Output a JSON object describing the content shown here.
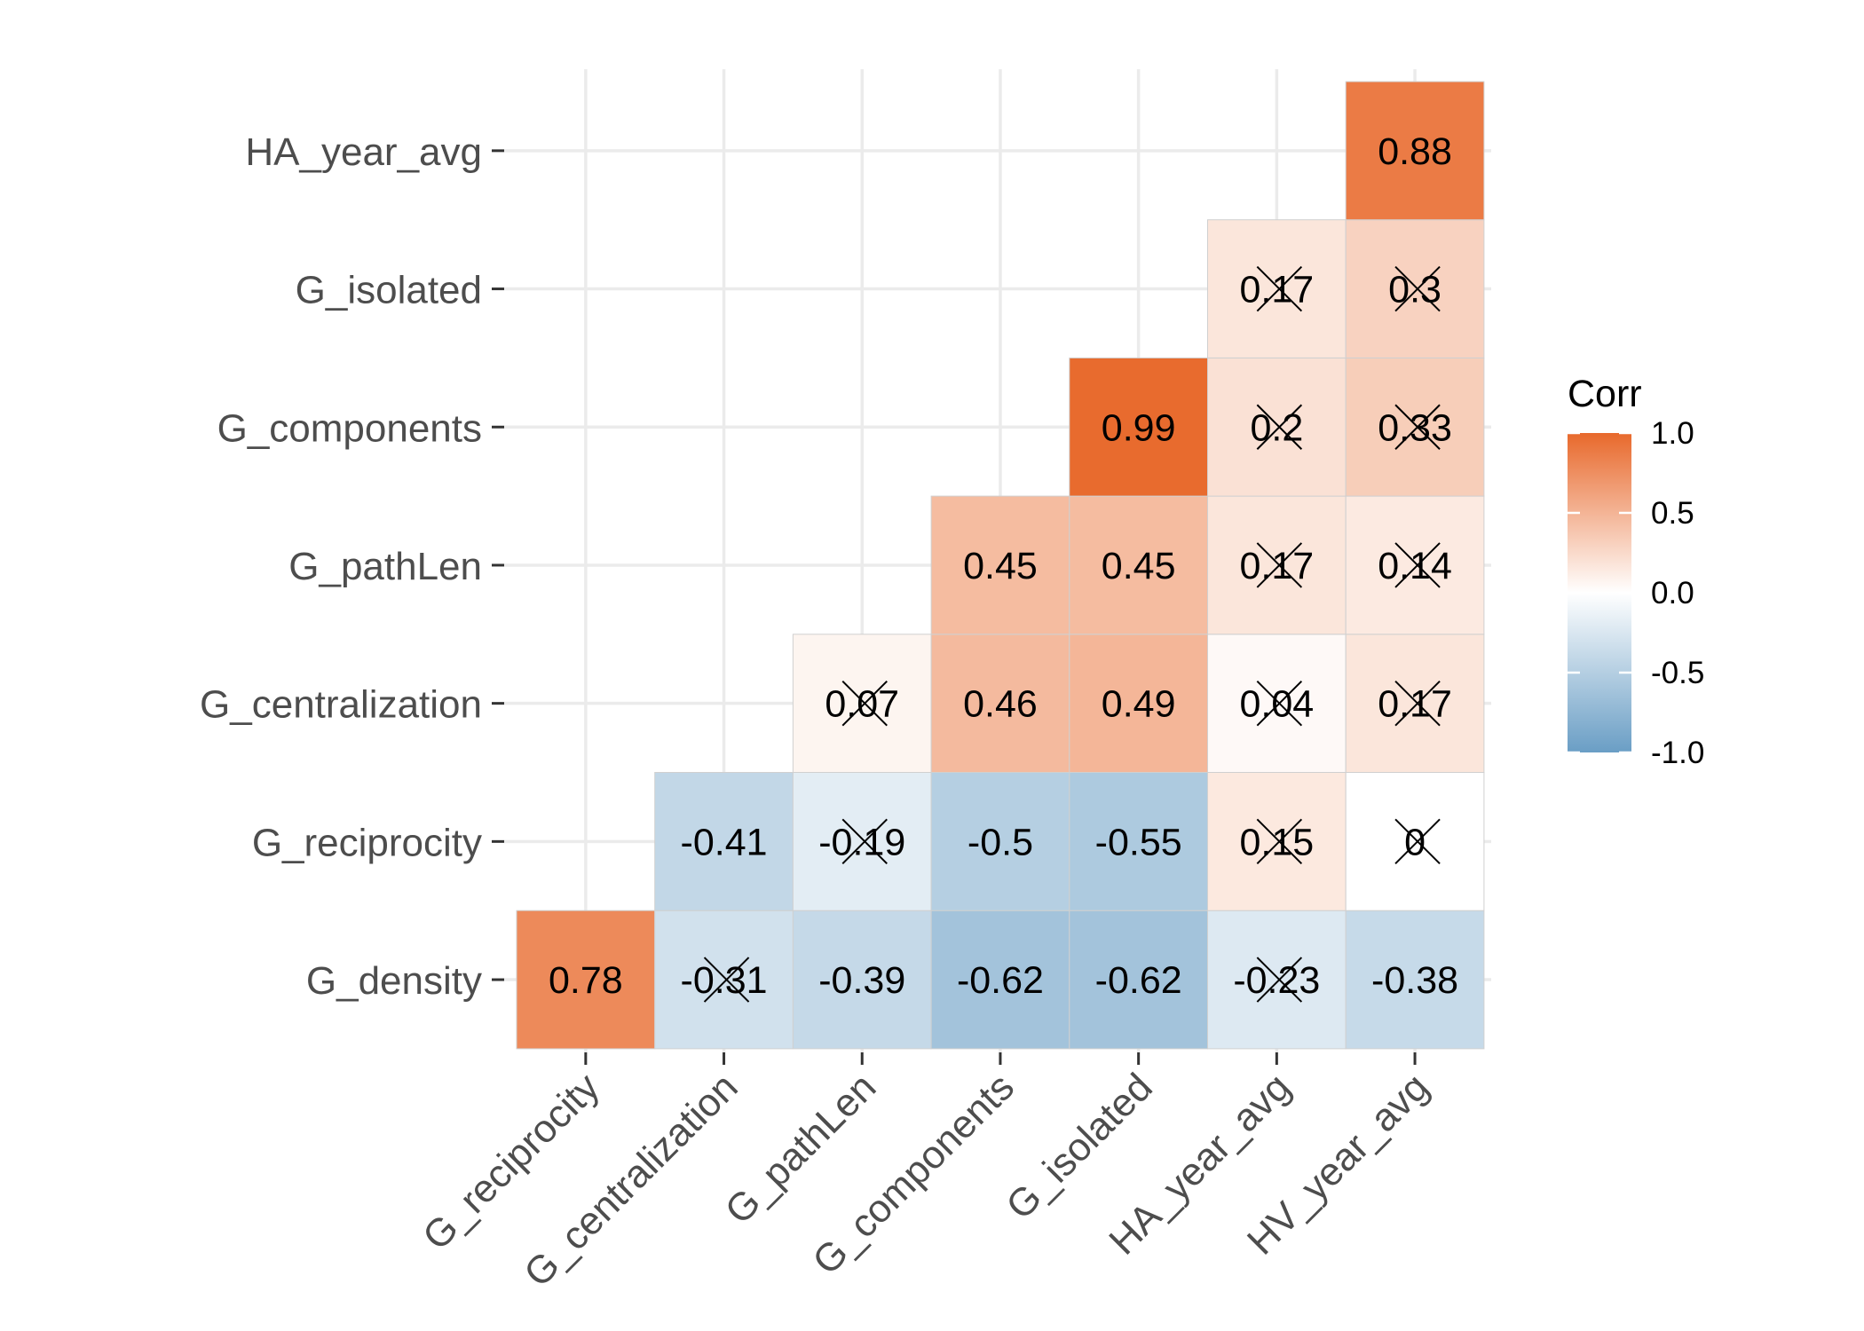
{
  "chart_data": {
    "type": "heatmap",
    "subtype": "lower-triangle correlation matrix",
    "x_categories": [
      "G_reciprocity",
      "G_centralization",
      "G_pathLen",
      "G_components",
      "G_isolated",
      "HA_year_avg",
      "HV_year_avg"
    ],
    "y_categories": [
      "G_density",
      "G_reciprocity",
      "G_centralization",
      "G_pathLen",
      "G_components",
      "G_isolated",
      "HA_year_avg"
    ],
    "cells": [
      {
        "x": "G_reciprocity",
        "y": "G_density",
        "value": 0.78,
        "label": "0.78",
        "insignificant": false
      },
      {
        "x": "G_centralization",
        "y": "G_density",
        "value": -0.31,
        "label": "-0.31",
        "insignificant": true
      },
      {
        "x": "G_pathLen",
        "y": "G_density",
        "value": -0.39,
        "label": "-0.39",
        "insignificant": false
      },
      {
        "x": "G_components",
        "y": "G_density",
        "value": -0.62,
        "label": "-0.62",
        "insignificant": false
      },
      {
        "x": "G_isolated",
        "y": "G_density",
        "value": -0.62,
        "label": "-0.62",
        "insignificant": false
      },
      {
        "x": "HA_year_avg",
        "y": "G_density",
        "value": -0.23,
        "label": "-0.23",
        "insignificant": true
      },
      {
        "x": "HV_year_avg",
        "y": "G_density",
        "value": -0.38,
        "label": "-0.38",
        "insignificant": false
      },
      {
        "x": "G_centralization",
        "y": "G_reciprocity",
        "value": -0.41,
        "label": "-0.41",
        "insignificant": false
      },
      {
        "x": "G_pathLen",
        "y": "G_reciprocity",
        "value": -0.19,
        "label": "-0.19",
        "insignificant": true
      },
      {
        "x": "G_components",
        "y": "G_reciprocity",
        "value": -0.5,
        "label": "-0.5",
        "insignificant": false
      },
      {
        "x": "G_isolated",
        "y": "G_reciprocity",
        "value": -0.55,
        "label": "-0.55",
        "insignificant": false
      },
      {
        "x": "HA_year_avg",
        "y": "G_reciprocity",
        "value": 0.15,
        "label": "0.15",
        "insignificant": true
      },
      {
        "x": "HV_year_avg",
        "y": "G_reciprocity",
        "value": 0,
        "label": "0",
        "insignificant": true
      },
      {
        "x": "G_pathLen",
        "y": "G_centralization",
        "value": 0.07,
        "label": "0.07",
        "insignificant": true
      },
      {
        "x": "G_components",
        "y": "G_centralization",
        "value": 0.46,
        "label": "0.46",
        "insignificant": false
      },
      {
        "x": "G_isolated",
        "y": "G_centralization",
        "value": 0.49,
        "label": "0.49",
        "insignificant": false
      },
      {
        "x": "HA_year_avg",
        "y": "G_centralization",
        "value": 0.04,
        "label": "0.04",
        "insignificant": true
      },
      {
        "x": "HV_year_avg",
        "y": "G_centralization",
        "value": 0.17,
        "label": "0.17",
        "insignificant": true
      },
      {
        "x": "G_components",
        "y": "G_pathLen",
        "value": 0.45,
        "label": "0.45",
        "insignificant": false
      },
      {
        "x": "G_isolated",
        "y": "G_pathLen",
        "value": 0.45,
        "label": "0.45",
        "insignificant": false
      },
      {
        "x": "HA_year_avg",
        "y": "G_pathLen",
        "value": 0.17,
        "label": "0.17",
        "insignificant": true
      },
      {
        "x": "HV_year_avg",
        "y": "G_pathLen",
        "value": 0.14,
        "label": "0.14",
        "insignificant": true
      },
      {
        "x": "G_isolated",
        "y": "G_components",
        "value": 0.99,
        "label": "0.99",
        "insignificant": false
      },
      {
        "x": "HA_year_avg",
        "y": "G_components",
        "value": 0.2,
        "label": "0.2",
        "insignificant": true
      },
      {
        "x": "HV_year_avg",
        "y": "G_components",
        "value": 0.33,
        "label": "0.33",
        "insignificant": true
      },
      {
        "x": "HA_year_avg",
        "y": "G_isolated",
        "value": 0.17,
        "label": "0.17",
        "insignificant": true
      },
      {
        "x": "HV_year_avg",
        "y": "G_isolated",
        "value": 0.3,
        "label": "0.3",
        "insignificant": true
      },
      {
        "x": "HV_year_avg",
        "y": "HA_year_avg",
        "value": 0.88,
        "label": "0.88",
        "insignificant": false
      }
    ],
    "legend": {
      "title": "Corr",
      "range": [
        -1,
        1
      ],
      "ticks": [
        1,
        0.5,
        0,
        -0.5,
        -1
      ],
      "tick_labels": [
        "1.0",
        "0.5",
        "0.0",
        "-0.5",
        "-1.0"
      ],
      "placement": "right",
      "colors": {
        "high": "#E8692C",
        "mid": "#FFFFFF",
        "low": "#6A9EC5"
      }
    },
    "grid": true,
    "title": "",
    "xlabel": "",
    "ylabel": ""
  }
}
